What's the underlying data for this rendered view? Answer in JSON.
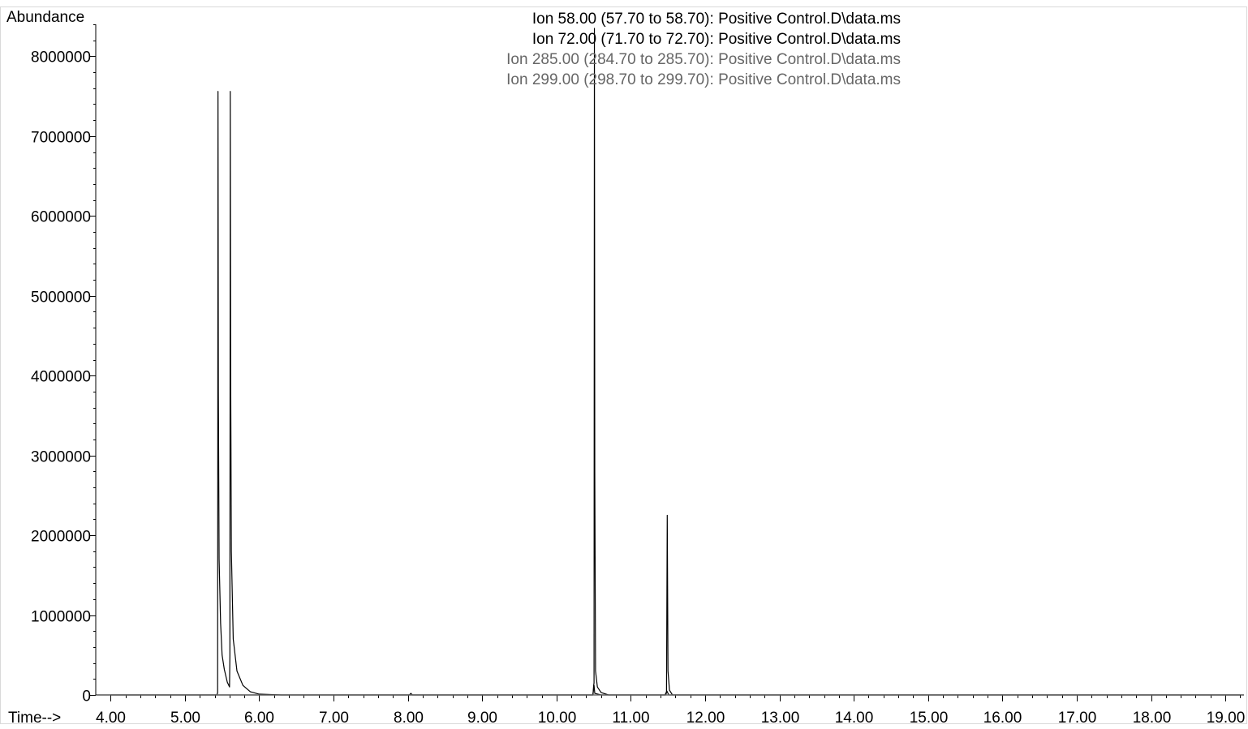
{
  "chart_data": {
    "type": "line",
    "ylabel": "Abundance",
    "xlabel": "Time-->",
    "xlim": [
      3.8,
      19.25
    ],
    "ylim": [
      0,
      8400000
    ],
    "x_ticks": [
      4.0,
      5.0,
      6.0,
      7.0,
      8.0,
      9.0,
      10.0,
      11.0,
      12.0,
      13.0,
      14.0,
      15.0,
      16.0,
      17.0,
      18.0,
      19.0
    ],
    "x_tick_labels": [
      "4.00",
      "5.00",
      "6.00",
      "7.00",
      "8.00",
      "9.00",
      "10.00",
      "11.00",
      "12.00",
      "13.00",
      "14.00",
      "15.00",
      "16.00",
      "17.00",
      "18.00",
      "19.00"
    ],
    "y_ticks": [
      0,
      1000000,
      2000000,
      3000000,
      4000000,
      5000000,
      6000000,
      7000000,
      8000000
    ],
    "y_tick_labels": [
      "0",
      "1000000",
      "2000000",
      "3000000",
      "4000000",
      "5000000",
      "6000000",
      "7000000",
      "8000000"
    ],
    "legend_placement": "top-center",
    "series": [
      {
        "name": "Ion  58.00 (57.70 to 58.70): Positive Control.D\\data.ms",
        "color": "#000000",
        "points": [
          [
            4.0,
            0
          ],
          [
            5.43,
            0
          ],
          [
            5.44,
            30000
          ],
          [
            5.445,
            7560000
          ],
          [
            5.45,
            3800000
          ],
          [
            5.46,
            1700000
          ],
          [
            5.48,
            900000
          ],
          [
            5.5,
            500000
          ],
          [
            5.53,
            320000
          ],
          [
            5.57,
            160000
          ],
          [
            5.6,
            100000
          ],
          [
            5.605,
            500000
          ],
          [
            5.61,
            7560000
          ],
          [
            5.615,
            4200000
          ],
          [
            5.625,
            1800000
          ],
          [
            5.65,
            700000
          ],
          [
            5.7,
            300000
          ],
          [
            5.78,
            120000
          ],
          [
            5.88,
            40000
          ],
          [
            6.0,
            10000
          ],
          [
            6.3,
            0
          ],
          [
            8.02,
            0
          ],
          [
            8.04,
            20000
          ],
          [
            8.06,
            0
          ],
          [
            10.49,
            0
          ],
          [
            10.5,
            120000
          ],
          [
            10.505,
            150000
          ],
          [
            10.51,
            8350000
          ],
          [
            10.515,
            2800000
          ],
          [
            10.525,
            300000
          ],
          [
            10.55,
            100000
          ],
          [
            10.6,
            30000
          ],
          [
            10.7,
            0
          ],
          [
            11.47,
            0
          ],
          [
            11.48,
            30000
          ],
          [
            11.49,
            2250000
          ],
          [
            11.5,
            300000
          ],
          [
            11.52,
            60000
          ],
          [
            11.56,
            0
          ],
          [
            19.2,
            0
          ]
        ]
      },
      {
        "name": "Ion  72.00 (71.70 to 72.70): Positive Control.D\\data.ms",
        "color": "#000000",
        "points": [
          [
            4.0,
            0
          ],
          [
            10.49,
            0
          ],
          [
            10.505,
            120000
          ],
          [
            10.515,
            20000
          ],
          [
            10.6,
            0
          ],
          [
            11.46,
            0
          ],
          [
            11.485,
            50000
          ],
          [
            11.51,
            0
          ],
          [
            19.2,
            0
          ]
        ]
      },
      {
        "name": "Ion 285.00 (284.70 to 285.70): Positive Control.D\\data.ms",
        "color": "#666666",
        "points": [
          [
            4.0,
            0
          ],
          [
            19.2,
            0
          ]
        ]
      },
      {
        "name": "Ion 299.00 (298.70 to 299.70): Positive Control.D\\data.ms",
        "color": "#666666",
        "points": [
          [
            4.0,
            0
          ],
          [
            19.2,
            0
          ]
        ]
      }
    ]
  }
}
